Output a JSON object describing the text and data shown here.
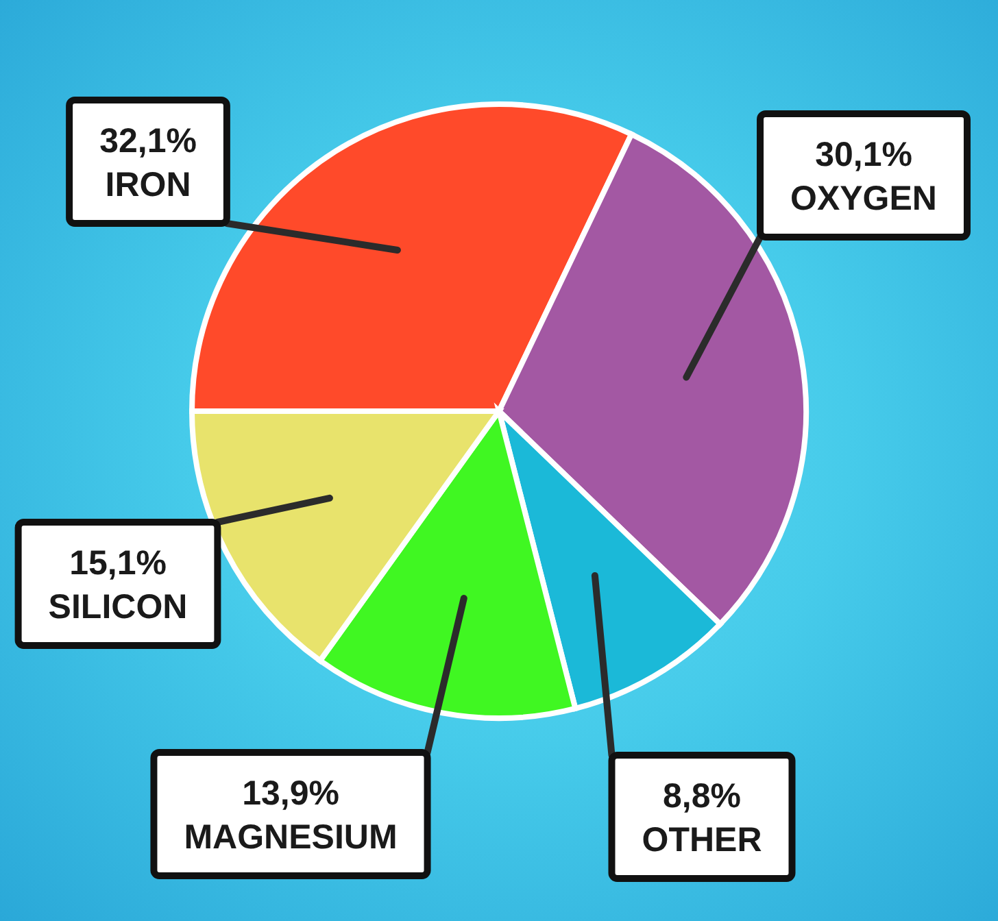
{
  "chart_data": {
    "type": "pie",
    "categories": [
      "IRON",
      "OXYGEN",
      "OTHER",
      "MAGNESIUM",
      "SILICON"
    ],
    "values": [
      32.1,
      30.1,
      8.8,
      13.9,
      15.1
    ],
    "colors": [
      "#ff4a2a",
      "#a358a3",
      "#1bb9d8",
      "#40f722",
      "#e8e36c"
    ],
    "value_labels": [
      "32,1%",
      "30,1%",
      "8,8%",
      "13,9%",
      "15,1%"
    ]
  }
}
